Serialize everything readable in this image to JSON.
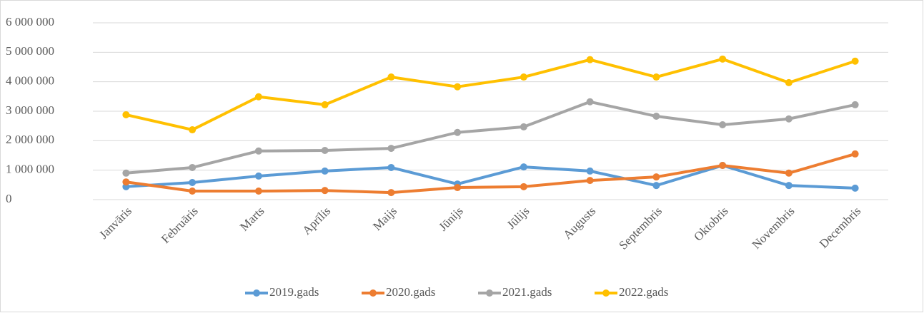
{
  "chart_data": {
    "type": "line",
    "categories": [
      "Janvāris",
      "Februāris",
      "Marts",
      "Aprīlis",
      "Maijs",
      "Jūnijs",
      "Jūlijs",
      "Augusts",
      "Septembris",
      "Oktobris",
      "Novembris",
      "Decembris"
    ],
    "series": [
      {
        "name": "2019.gads",
        "color": "#5b9bd5",
        "values": [
          440000,
          580000,
          800000,
          970000,
          1090000,
          530000,
          1110000,
          970000,
          480000,
          1160000,
          480000,
          390000
        ]
      },
      {
        "name": "2020.gads",
        "color": "#ed7d31",
        "values": [
          600000,
          290000,
          290000,
          310000,
          240000,
          410000,
          440000,
          650000,
          770000,
          1160000,
          900000,
          1550000
        ]
      },
      {
        "name": "2021.gads",
        "color": "#a5a5a5",
        "values": [
          900000,
          1090000,
          1650000,
          1670000,
          1740000,
          2280000,
          2470000,
          3320000,
          2830000,
          2540000,
          2740000,
          3220000
        ]
      },
      {
        "name": "2022.gads",
        "color": "#ffc000",
        "values": [
          2880000,
          2370000,
          3490000,
          3220000,
          4160000,
          3830000,
          4160000,
          4750000,
          4160000,
          4770000,
          3970000,
          4700000
        ]
      }
    ],
    "ylim": [
      0,
      6000000
    ],
    "yticks": [
      0,
      {
        "value": 1000000,
        "label": "1 000 000"
      },
      {
        "value": 2000000,
        "label": "2 000 000"
      },
      {
        "value": 3000000,
        "label": "3 000 000"
      },
      {
        "value": 4000000,
        "label": "4 000 000"
      },
      {
        "value": 5000000,
        "label": "5 000 000"
      },
      {
        "value": 6000000,
        "label": "6 000 000"
      }
    ],
    "grid": true,
    "legend": "bottom"
  }
}
